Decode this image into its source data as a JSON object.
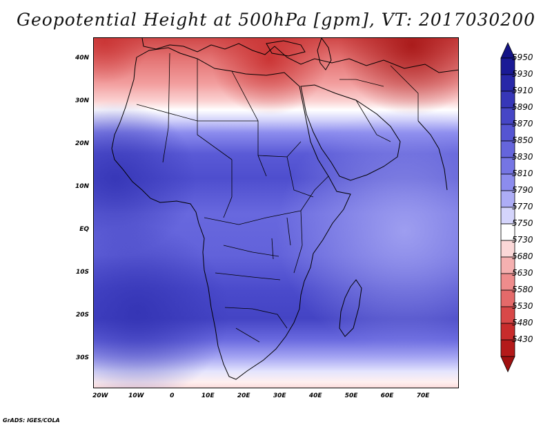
{
  "title": "Geopotential Height at 500hPa [gpm], VT: 2017030200",
  "credit": "GrADS: IGES/COLA",
  "map": {
    "region": "Africa, Arabian Peninsula and Mediterranean",
    "lat_range": [
      -37,
      45
    ],
    "lon_range": [
      -22,
      80
    ],
    "lat_ticks": [
      {
        "label": "40N",
        "value": 40
      },
      {
        "label": "30N",
        "value": 30
      },
      {
        "label": "20N",
        "value": 20
      },
      {
        "label": "10N",
        "value": 10
      },
      {
        "label": "EQ",
        "value": 0
      },
      {
        "label": "10S",
        "value": -10
      },
      {
        "label": "20S",
        "value": -20
      },
      {
        "label": "30S",
        "value": -30
      }
    ],
    "lon_ticks": [
      {
        "label": "20W",
        "value": -20
      },
      {
        "label": "10W",
        "value": -10
      },
      {
        "label": "0",
        "value": 0
      },
      {
        "label": "10E",
        "value": 10
      },
      {
        "label": "20E",
        "value": 20
      },
      {
        "label": "30E",
        "value": 30
      },
      {
        "label": "40E",
        "value": 40
      },
      {
        "label": "50E",
        "value": 50
      },
      {
        "label": "60E",
        "value": 60
      },
      {
        "label": "70E",
        "value": 70
      }
    ]
  },
  "colorbar": {
    "labels": [
      "5950",
      "5930",
      "5910",
      "5890",
      "5870",
      "5850",
      "5830",
      "5810",
      "5790",
      "5770",
      "5750",
      "5730",
      "5680",
      "5630",
      "5580",
      "5530",
      "5480",
      "5430"
    ],
    "colors": [
      "#1a1a96",
      "#2828a8",
      "#3737b8",
      "#4646c6",
      "#5555d2",
      "#6565dc",
      "#7575e4",
      "#8c8cee",
      "#adadf6",
      "#d4d4fb",
      "#ffffff",
      "#fbd8d8",
      "#f5b0b0",
      "#ee8c8c",
      "#e46a6a",
      "#d84848",
      "#c82c2c",
      "#b41a1a"
    ],
    "top_color": "#141486",
    "bottom_color": "#a01010"
  }
}
